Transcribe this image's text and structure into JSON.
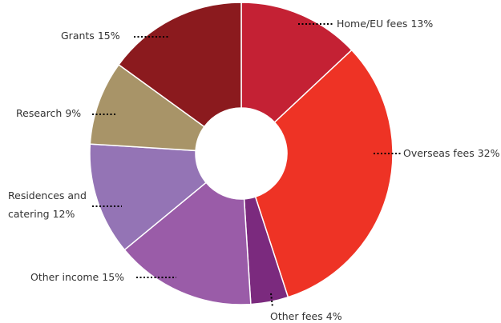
{
  "chart_data": {
    "type": "donut",
    "categories": [
      "Home/EU fees",
      "Overseas fees",
      "Other fees",
      "Other income",
      "Residences and catering",
      "Research",
      "Grants"
    ],
    "values": [
      13,
      32,
      4,
      15,
      12,
      9,
      15
    ],
    "value_labels": [
      "13%",
      "32%",
      "4%",
      "15%",
      "12%",
      "9%",
      "15%"
    ],
    "colors": [
      "#c42134",
      "#ee3325",
      "#7b2a7e",
      "#9a5ca8",
      "#9474b5",
      "#a89468",
      "#8b1a1e"
    ]
  }
}
